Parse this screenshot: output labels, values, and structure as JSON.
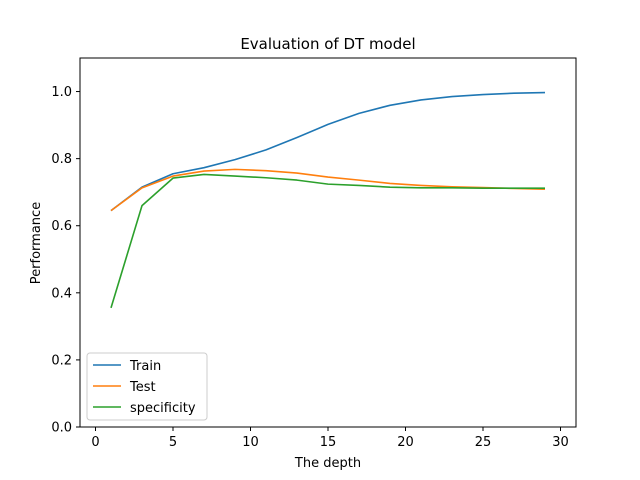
{
  "chart_data": {
    "type": "line",
    "title": "Evaluation of DT model",
    "xlabel": "The depth",
    "ylabel": "Performance",
    "xlim": [
      -1,
      31
    ],
    "ylim": [
      0.0,
      1.1
    ],
    "xticks": [
      0,
      5,
      10,
      15,
      20,
      25,
      30
    ],
    "xtick_labels": [
      "0",
      "5",
      "10",
      "15",
      "20",
      "25",
      "30"
    ],
    "yticks": [
      0.0,
      0.2,
      0.4,
      0.6,
      0.8,
      1.0
    ],
    "ytick_labels": [
      "0.0",
      "0.2",
      "0.4",
      "0.6",
      "0.8",
      "1.0"
    ],
    "grid": false,
    "legend_position": "lower-left",
    "x": [
      1,
      3,
      5,
      7,
      9,
      11,
      13,
      15,
      17,
      19,
      21,
      23,
      25,
      27,
      29
    ],
    "series": [
      {
        "name": "Train",
        "color": "#1f77b4",
        "values": [
          0.645,
          0.715,
          0.755,
          0.773,
          0.797,
          0.826,
          0.863,
          0.902,
          0.935,
          0.959,
          0.975,
          0.985,
          0.991,
          0.995,
          0.997
        ]
      },
      {
        "name": "Test",
        "color": "#ff7f0e",
        "values": [
          0.645,
          0.713,
          0.748,
          0.763,
          0.768,
          0.764,
          0.757,
          0.745,
          0.736,
          0.726,
          0.72,
          0.716,
          0.714,
          0.711,
          0.709
        ]
      },
      {
        "name": "specificity",
        "color": "#2ca02c",
        "values": [
          0.355,
          0.66,
          0.742,
          0.753,
          0.748,
          0.743,
          0.736,
          0.724,
          0.72,
          0.715,
          0.713,
          0.713,
          0.712,
          0.712,
          0.712
        ]
      }
    ]
  }
}
